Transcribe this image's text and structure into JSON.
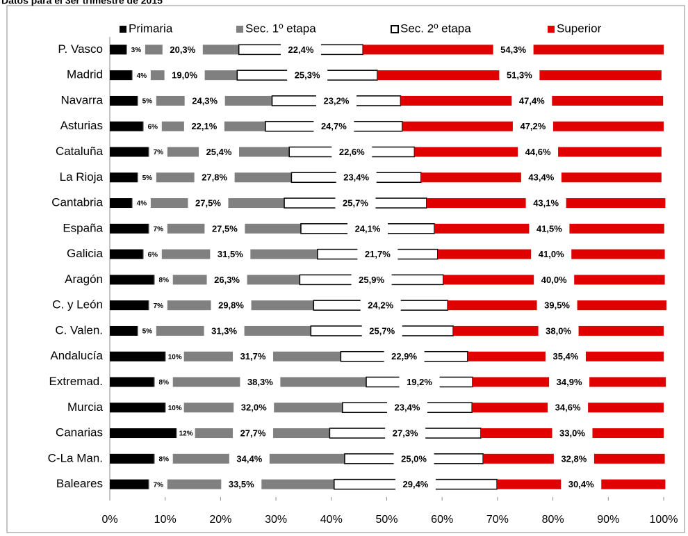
{
  "chart_data": {
    "type": "stacked_bar_horizontal",
    "title": "Datos para el 3er trimestre de 2015",
    "categories": [
      "P. Vasco",
      "Madrid",
      "Navarra",
      "Asturias",
      "Cataluña",
      "La Rioja",
      "Cantabria",
      "España",
      "Galicia",
      "Aragón",
      "C. y León",
      "C. Valen.",
      "Andalucía",
      "Extremad.",
      "Murcia",
      "Canarias",
      "C-La Man.",
      "Baleares"
    ],
    "series": [
      {
        "name": "Primaria",
        "color": "#000000",
        "values": [
          3,
          4,
          5,
          6,
          7,
          5,
          4,
          7,
          6,
          8,
          7,
          5,
          10,
          8,
          10,
          12,
          8,
          7
        ],
        "value_labels": [
          "3%",
          "4%",
          "5%",
          "6%",
          "7%",
          "5%",
          "4%",
          "7%",
          "6%",
          "8%",
          "7%",
          "5%",
          "10%",
          "8%",
          "10%",
          "12%",
          "8%",
          "7%"
        ]
      },
      {
        "name": "Sec. 1º etapa",
        "color": "#808080",
        "values": [
          20.3,
          19.0,
          24.3,
          22.1,
          25.4,
          27.8,
          27.5,
          27.5,
          31.5,
          26.3,
          29.8,
          31.3,
          31.7,
          38.3,
          32.0,
          27.7,
          34.4,
          33.5
        ],
        "value_labels": [
          "20,3%",
          "19,0%",
          "24,3%",
          "22,1%",
          "25,4%",
          "27,8%",
          "27,5%",
          "27,5%",
          "31,5%",
          "26,3%",
          "29,8%",
          "31,3%",
          "31,7%",
          "38,3%",
          "32,0%",
          "27,7%",
          "34,4%",
          "33,5%"
        ]
      },
      {
        "name": "Sec. 2º etapa",
        "color": "#ffffff",
        "values": [
          22.4,
          25.3,
          23.2,
          24.7,
          22.6,
          23.4,
          25.7,
          24.1,
          21.7,
          25.9,
          24.2,
          25.7,
          22.9,
          19.2,
          23.4,
          27.3,
          25.0,
          29.4
        ],
        "value_labels": [
          "22,4%",
          "25,3%",
          "23,2%",
          "24,7%",
          "22,6%",
          "23,4%",
          "25,7%",
          "24,1%",
          "21,7%",
          "25,9%",
          "24,2%",
          "25,7%",
          "22,9%",
          "19,2%",
          "23,4%",
          "27,3%",
          "25,0%",
          "29,4%"
        ]
      },
      {
        "name": "Superior",
        "color": "#e00000",
        "values": [
          54.3,
          51.3,
          47.4,
          47.2,
          44.6,
          43.4,
          43.1,
          41.5,
          41.0,
          40.0,
          39.5,
          38.0,
          35.4,
          34.9,
          34.6,
          33.0,
          32.8,
          30.4
        ],
        "value_labels": [
          "54,3%",
          "51,3%",
          "47,4%",
          "47,2%",
          "44,6%",
          "43,4%",
          "43,1%",
          "41,5%",
          "41,0%",
          "40,0%",
          "39,5%",
          "38,0%",
          "35,4%",
          "34,9%",
          "34,6%",
          "33,0%",
          "32,8%",
          "30,4%"
        ]
      }
    ],
    "xlim": [
      0,
      100
    ],
    "xticks": [
      {
        "value": 0,
        "label": "0%"
      },
      {
        "value": 10,
        "label": "10%"
      },
      {
        "value": 20,
        "label": "20%"
      },
      {
        "value": 30,
        "label": "30%"
      },
      {
        "value": 40,
        "label": "40%"
      },
      {
        "value": 50,
        "label": "50%"
      },
      {
        "value": 60,
        "label": "60%"
      },
      {
        "value": 70,
        "label": "70%"
      },
      {
        "value": 80,
        "label": "80%"
      },
      {
        "value": 90,
        "label": "90%"
      },
      {
        "value": 100,
        "label": "100%"
      }
    ],
    "legend": "top"
  }
}
